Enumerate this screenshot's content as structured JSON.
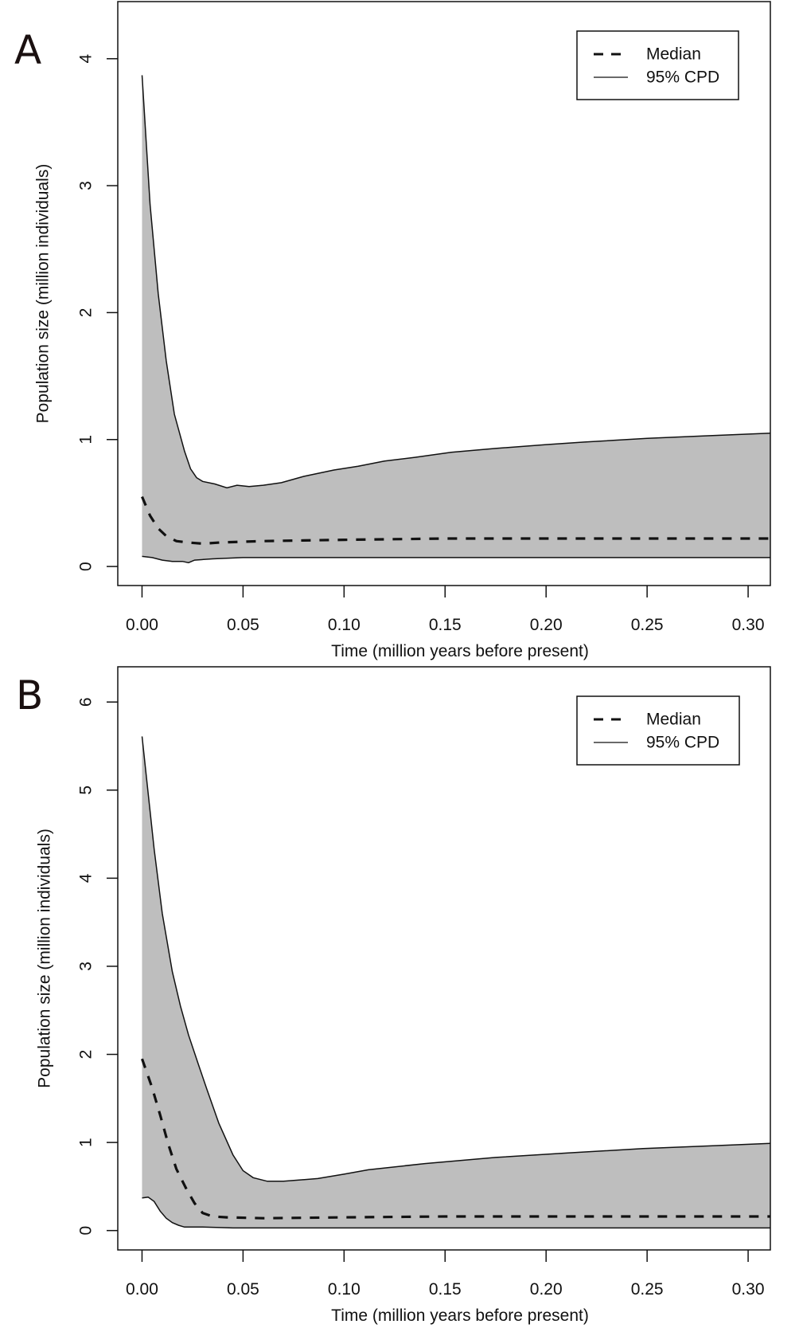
{
  "chart_data": [
    {
      "type": "area",
      "panel_label": "A",
      "xlabel": "Time (million years before present)",
      "ylabel": "Population size (million individuals)",
      "xlim": [
        -0.012,
        0.311
      ],
      "ylim": [
        -0.15,
        4.45
      ],
      "x_ticks": [
        0.0,
        0.05,
        0.1,
        0.15,
        0.2,
        0.25,
        0.3
      ],
      "x_tick_labels": [
        "0.00",
        "0.05",
        "0.10",
        "0.15",
        "0.20",
        "0.25",
        "0.30"
      ],
      "y_ticks": [
        0,
        1,
        2,
        3,
        4
      ],
      "y_tick_labels": [
        "0",
        "1",
        "2",
        "3",
        "4"
      ],
      "grid": false,
      "legend": {
        "position": "top-right",
        "entries": [
          {
            "label": "Median",
            "style": "dashed"
          },
          {
            "label": "95% CPD",
            "style": "solid"
          }
        ]
      },
      "fill_color": "#bebebe",
      "series": [
        {
          "name": "95% CPD upper",
          "x": [
            0.0,
            0.004,
            0.008,
            0.012,
            0.016,
            0.021,
            0.024,
            0.027,
            0.03,
            0.036,
            0.042,
            0.047,
            0.053,
            0.06,
            0.069,
            0.08,
            0.095,
            0.107,
            0.12,
            0.135,
            0.153,
            0.175,
            0.2,
            0.219,
            0.25,
            0.28,
            0.311
          ],
          "y": [
            3.87,
            2.85,
            2.15,
            1.62,
            1.2,
            0.91,
            0.77,
            0.7,
            0.67,
            0.65,
            0.62,
            0.64,
            0.63,
            0.64,
            0.66,
            0.71,
            0.76,
            0.79,
            0.83,
            0.86,
            0.9,
            0.93,
            0.96,
            0.98,
            1.01,
            1.03,
            1.05
          ]
        },
        {
          "name": "Median",
          "x": [
            0.0,
            0.004,
            0.008,
            0.012,
            0.017,
            0.022,
            0.03,
            0.04,
            0.06,
            0.1,
            0.15,
            0.2,
            0.25,
            0.311
          ],
          "y": [
            0.55,
            0.4,
            0.3,
            0.24,
            0.2,
            0.19,
            0.18,
            0.19,
            0.2,
            0.21,
            0.22,
            0.22,
            0.22,
            0.22
          ]
        },
        {
          "name": "95% CPD lower",
          "x": [
            0.0,
            0.005,
            0.01,
            0.015,
            0.02,
            0.023,
            0.026,
            0.035,
            0.05,
            0.08,
            0.15,
            0.311
          ],
          "y": [
            0.08,
            0.07,
            0.05,
            0.04,
            0.04,
            0.03,
            0.05,
            0.06,
            0.07,
            0.07,
            0.07,
            0.07
          ]
        }
      ]
    },
    {
      "type": "area",
      "panel_label": "B",
      "xlabel": "Time (million years before present)",
      "ylabel": "Population size (million individuals)",
      "xlim": [
        -0.012,
        0.311
      ],
      "ylim": [
        -0.22,
        6.4
      ],
      "x_ticks": [
        0.0,
        0.05,
        0.1,
        0.15,
        0.2,
        0.25,
        0.3
      ],
      "x_tick_labels": [
        "0.00",
        "0.05",
        "0.10",
        "0.15",
        "0.20",
        "0.25",
        "0.30"
      ],
      "y_ticks": [
        0,
        1,
        2,
        3,
        4,
        5,
        6
      ],
      "y_tick_labels": [
        "0",
        "1",
        "2",
        "3",
        "4",
        "5",
        "6"
      ],
      "grid": false,
      "legend": {
        "position": "top-right",
        "entries": [
          {
            "label": "Median",
            "style": "dashed"
          },
          {
            "label": "95% CPD",
            "style": "solid"
          }
        ]
      },
      "fill_color": "#bebebe",
      "series": [
        {
          "name": "95% CPD upper",
          "x": [
            0.0,
            0.006,
            0.01,
            0.015,
            0.019,
            0.023,
            0.028,
            0.032,
            0.038,
            0.045,
            0.05,
            0.055,
            0.062,
            0.07,
            0.087,
            0.1,
            0.112,
            0.14,
            0.175,
            0.21,
            0.248,
            0.28,
            0.311
          ],
          "y": [
            5.61,
            4.33,
            3.6,
            2.94,
            2.55,
            2.22,
            1.88,
            1.61,
            1.22,
            0.86,
            0.68,
            0.6,
            0.56,
            0.56,
            0.59,
            0.64,
            0.69,
            0.76,
            0.83,
            0.88,
            0.93,
            0.96,
            0.99
          ]
        },
        {
          "name": "Median",
          "x": [
            0.0,
            0.005,
            0.009,
            0.013,
            0.017,
            0.022,
            0.026,
            0.03,
            0.035,
            0.042,
            0.06,
            0.1,
            0.15,
            0.2,
            0.25,
            0.311
          ],
          "y": [
            1.95,
            1.62,
            1.31,
            0.98,
            0.7,
            0.47,
            0.31,
            0.2,
            0.16,
            0.15,
            0.14,
            0.15,
            0.16,
            0.16,
            0.16,
            0.16
          ]
        },
        {
          "name": "95% CPD lower",
          "x": [
            0.0,
            0.003,
            0.006,
            0.009,
            0.012,
            0.015,
            0.018,
            0.021,
            0.03,
            0.045,
            0.08,
            0.15,
            0.311
          ],
          "y": [
            0.37,
            0.38,
            0.33,
            0.22,
            0.14,
            0.09,
            0.06,
            0.04,
            0.04,
            0.03,
            0.03,
            0.03,
            0.03
          ]
        }
      ]
    }
  ]
}
